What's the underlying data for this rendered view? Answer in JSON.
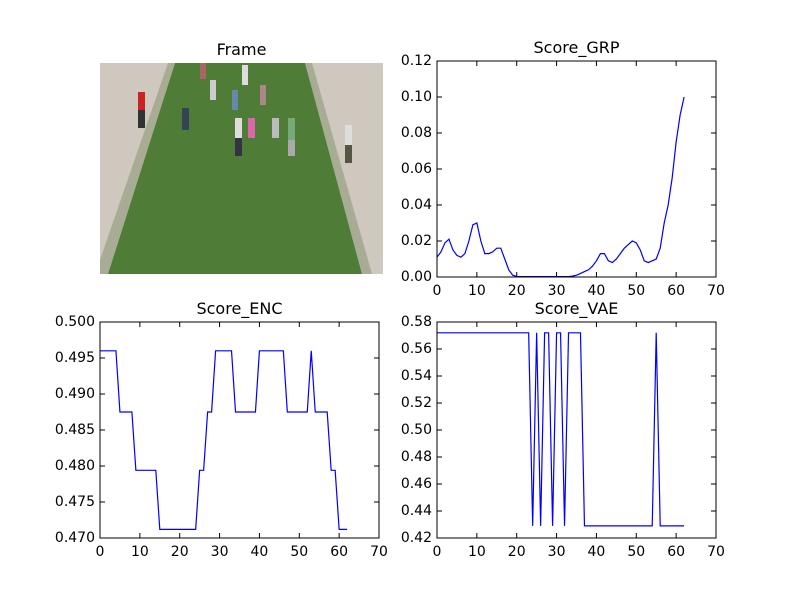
{
  "chart_data": [
    {
      "type": "image",
      "title": "Frame"
    },
    {
      "type": "line",
      "title": "Score_GRP",
      "color": "#0000ff",
      "x": [
        0,
        1,
        2,
        3,
        4,
        5,
        6,
        7,
        8,
        9,
        10,
        11,
        12,
        13,
        14,
        15,
        16,
        17,
        18,
        19,
        20,
        21,
        22,
        23,
        24,
        25,
        26,
        27,
        28,
        29,
        30,
        31,
        32,
        33,
        34,
        35,
        36,
        37,
        38,
        39,
        40,
        41,
        42,
        43,
        44,
        45,
        46,
        47,
        48,
        49,
        50,
        51,
        52,
        53,
        54,
        55,
        56,
        57,
        58,
        59,
        60,
        61,
        62
      ],
      "values": [
        0.011,
        0.014,
        0.019,
        0.021,
        0.015,
        0.012,
        0.011,
        0.013,
        0.02,
        0.029,
        0.03,
        0.02,
        0.013,
        0.013,
        0.014,
        0.016,
        0.016,
        0.01,
        0.004,
        0.001,
        0.0003,
        0.0002,
        0.0002,
        0.0002,
        0.0002,
        0.0002,
        0.0002,
        0.0002,
        0.0002,
        0.0002,
        0.0002,
        0.0002,
        0.0002,
        0.0002,
        0.0005,
        0.001,
        0.002,
        0.003,
        0.004,
        0.006,
        0.009,
        0.013,
        0.013,
        0.009,
        0.008,
        0.01,
        0.013,
        0.016,
        0.018,
        0.02,
        0.019,
        0.015,
        0.009,
        0.008,
        0.009,
        0.01,
        0.016,
        0.03,
        0.04,
        0.055,
        0.075,
        0.09,
        0.1
      ],
      "xlim": [
        0,
        70
      ],
      "xticks": [
        0,
        10,
        20,
        30,
        40,
        50,
        60,
        70
      ],
      "ylim": [
        0,
        0.12
      ],
      "yticks": [
        {
          "value": 0,
          "label": "0.00"
        },
        0.02,
        0.04,
        0.06,
        0.08,
        {
          "value": 0.1,
          "label": "0.10"
        },
        0.12
      ]
    },
    {
      "type": "line",
      "title": "Score_ENC",
      "color": "#0000ff",
      "x": [
        0,
        1,
        2,
        3,
        4,
        5,
        6,
        7,
        8,
        9,
        10,
        11,
        12,
        13,
        14,
        15,
        16,
        17,
        18,
        19,
        20,
        21,
        22,
        23,
        24,
        25,
        26,
        27,
        28,
        29,
        30,
        31,
        32,
        33,
        34,
        35,
        36,
        37,
        38,
        39,
        40,
        41,
        42,
        43,
        44,
        45,
        46,
        47,
        48,
        49,
        50,
        51,
        52,
        53,
        54,
        55,
        56,
        57,
        58,
        59,
        60,
        61,
        62
      ],
      "values": [
        0.496,
        0.496,
        0.496,
        0.496,
        0.496,
        0.4875,
        0.4875,
        0.4875,
        0.4875,
        0.4794,
        0.4794,
        0.4794,
        0.4794,
        0.4794,
        0.4794,
        0.4712,
        0.4712,
        0.4712,
        0.4712,
        0.4712,
        0.4712,
        0.4712,
        0.4712,
        0.4712,
        0.4712,
        0.4794,
        0.4794,
        0.4875,
        0.4875,
        0.496,
        0.496,
        0.496,
        0.496,
        0.496,
        0.4875,
        0.4875,
        0.4875,
        0.4875,
        0.4875,
        0.4875,
        0.496,
        0.496,
        0.496,
        0.496,
        0.496,
        0.496,
        0.496,
        0.4875,
        0.4875,
        0.4875,
        0.4875,
        0.4875,
        0.4875,
        0.496,
        0.4875,
        0.4875,
        0.4875,
        0.4875,
        0.4794,
        0.4794,
        0.4712,
        0.4712,
        0.4712
      ],
      "xlim": [
        0,
        70
      ],
      "xticks": [
        0,
        10,
        20,
        30,
        40,
        50,
        60,
        70
      ],
      "ylim": [
        0.47,
        0.5
      ],
      "yticks": [
        {
          "value": 0.47,
          "label": "0.470"
        },
        0.475,
        {
          "value": 0.48,
          "label": "0.480"
        },
        0.485,
        {
          "value": 0.49,
          "label": "0.490"
        },
        0.495,
        {
          "value": 0.5,
          "label": "0.500"
        }
      ]
    },
    {
      "type": "line",
      "title": "Score_VAE",
      "color": "#0000ff",
      "x": [
        0,
        1,
        2,
        3,
        4,
        5,
        6,
        7,
        8,
        9,
        10,
        11,
        12,
        13,
        14,
        15,
        16,
        17,
        18,
        19,
        20,
        21,
        22,
        23,
        24,
        25,
        26,
        27,
        28,
        29,
        30,
        31,
        32,
        33,
        34,
        35,
        36,
        37,
        38,
        39,
        40,
        41,
        42,
        43,
        44,
        45,
        46,
        47,
        48,
        49,
        50,
        51,
        52,
        53,
        54,
        55,
        56,
        57,
        58,
        59,
        60,
        61,
        62
      ],
      "values": [
        0.572,
        0.572,
        0.572,
        0.572,
        0.572,
        0.572,
        0.572,
        0.572,
        0.572,
        0.572,
        0.572,
        0.572,
        0.572,
        0.572,
        0.572,
        0.572,
        0.572,
        0.572,
        0.572,
        0.572,
        0.572,
        0.572,
        0.572,
        0.572,
        0.429,
        0.572,
        0.429,
        0.572,
        0.572,
        0.429,
        0.572,
        0.572,
        0.429,
        0.572,
        0.572,
        0.572,
        0.572,
        0.429,
        0.429,
        0.429,
        0.429,
        0.429,
        0.429,
        0.429,
        0.429,
        0.429,
        0.429,
        0.429,
        0.429,
        0.429,
        0.429,
        0.429,
        0.429,
        0.429,
        0.429,
        0.572,
        0.429,
        0.429,
        0.429,
        0.429,
        0.429,
        0.429,
        0.429
      ],
      "xlim": [
        0,
        70
      ],
      "xticks": [
        0,
        10,
        20,
        30,
        40,
        50,
        60,
        70
      ],
      "ylim": [
        0.42,
        0.58
      ],
      "yticks": [
        0.42,
        0.44,
        0.46,
        0.48,
        {
          "value": 0.5,
          "label": "0.50"
        },
        0.52,
        0.54,
        0.56,
        0.58
      ]
    }
  ]
}
